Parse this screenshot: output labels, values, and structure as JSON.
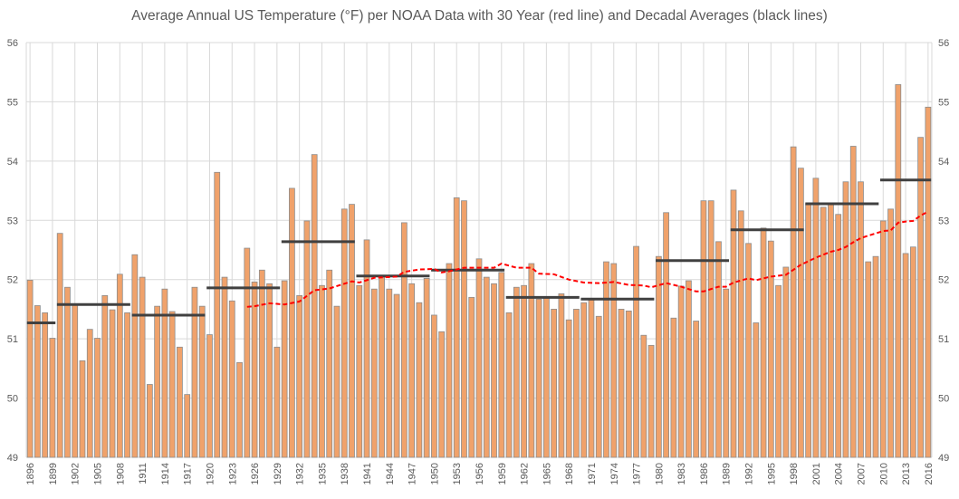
{
  "chart_data": {
    "type": "bar",
    "title": "Average Annual US Temperature (°F) per NOAA Data with 30 Year (red line) and Decadal Averages (black lines)",
    "xlabel": "",
    "ylabel": "",
    "ylim": [
      49,
      56
    ],
    "yticks": [
      49,
      50,
      51,
      52,
      53,
      54,
      55,
      56
    ],
    "secondary_y_axis": true,
    "grid": true,
    "x_tick_step": 3,
    "colors": {
      "bar_fill": "#F0A26B",
      "bar_stroke": "#8C8C8C",
      "rolling_avg": "#FF0000",
      "decadal": "#404040",
      "grid": "#D9D9D9"
    },
    "categories": [
      1896,
      1897,
      1898,
      1899,
      1900,
      1901,
      1902,
      1903,
      1904,
      1905,
      1906,
      1907,
      1908,
      1909,
      1910,
      1911,
      1912,
      1913,
      1914,
      1915,
      1916,
      1917,
      1918,
      1919,
      1920,
      1921,
      1922,
      1923,
      1924,
      1925,
      1926,
      1927,
      1928,
      1929,
      1930,
      1931,
      1932,
      1933,
      1934,
      1935,
      1936,
      1937,
      1938,
      1939,
      1940,
      1941,
      1942,
      1943,
      1944,
      1945,
      1946,
      1947,
      1948,
      1949,
      1950,
      1951,
      1952,
      1953,
      1954,
      1955,
      1956,
      1957,
      1958,
      1959,
      1960,
      1961,
      1962,
      1963,
      1964,
      1965,
      1966,
      1967,
      1968,
      1969,
      1970,
      1971,
      1972,
      1973,
      1974,
      1975,
      1976,
      1977,
      1978,
      1979,
      1980,
      1981,
      1982,
      1983,
      1984,
      1985,
      1986,
      1987,
      1988,
      1989,
      1990,
      1991,
      1992,
      1993,
      1994,
      1995,
      1996,
      1997,
      1998,
      1999,
      2000,
      2001,
      2002,
      2003,
      2004,
      2005,
      2006,
      2007,
      2008,
      2009,
      2010,
      2011,
      2012,
      2013,
      2014,
      2015,
      2016
    ],
    "values": [
      51.99,
      51.56,
      51.44,
      51.01,
      52.78,
      51.87,
      51.57,
      50.63,
      51.16,
      51.01,
      51.73,
      51.49,
      52.09,
      51.44,
      52.42,
      52.04,
      50.23,
      51.55,
      51.84,
      51.46,
      50.86,
      50.06,
      51.87,
      51.55,
      51.07,
      53.81,
      52.04,
      51.64,
      50.6,
      52.53,
      51.96,
      52.16,
      51.93,
      50.86,
      51.98,
      53.54,
      51.73,
      52.99,
      54.11,
      51.9,
      52.16,
      51.55,
      53.19,
      53.27,
      51.9,
      52.67,
      51.84,
      52.04,
      51.84,
      51.75,
      52.96,
      51.93,
      51.61,
      52.02,
      51.4,
      51.12,
      52.27,
      53.38,
      53.33,
      51.7,
      52.35,
      52.04,
      51.93,
      52.12,
      51.44,
      51.87,
      51.9,
      52.27,
      51.67,
      51.69,
      51.5,
      51.76,
      51.32,
      51.5,
      51.61,
      51.66,
      51.38,
      52.3,
      52.27,
      51.5,
      51.47,
      52.56,
      51.06,
      50.89,
      52.39,
      53.13,
      51.35,
      51.89,
      51.98,
      51.3,
      53.33,
      53.33,
      52.64,
      51.84,
      53.51,
      53.16,
      52.61,
      51.27,
      52.87,
      52.65,
      51.9,
      52.21,
      54.24,
      53.88,
      53.28,
      53.71,
      53.22,
      53.27,
      53.1,
      53.65,
      54.25,
      53.65,
      52.3,
      52.39,
      52.99,
      53.19,
      55.29,
      52.44,
      52.55,
      54.4,
      54.91
    ],
    "rolling_30yr": {
      "x": [
        1925,
        1926,
        1928,
        1930,
        1932,
        1934,
        1936,
        1938,
        1939,
        1940,
        1942,
        1945,
        1946,
        1948,
        1950,
        1951,
        1952,
        1954,
        1956,
        1958,
        1959,
        1961,
        1963,
        1964,
        1966,
        1968,
        1970,
        1972,
        1974,
        1976,
        1978,
        1979,
        1981,
        1983,
        1985,
        1986,
        1988,
        1989,
        1990,
        1992,
        1993,
        1995,
        1997,
        1999,
        2001,
        2003,
        2004,
        2005,
        2006,
        2007,
        2009,
        2010,
        2011,
        2012,
        2013,
        2014,
        2015,
        2016
      ],
      "y": [
        51.54,
        51.55,
        51.6,
        51.58,
        51.63,
        51.82,
        51.85,
        51.93,
        51.97,
        51.95,
        52.03,
        52.05,
        52.13,
        52.17,
        52.18,
        52.12,
        52.14,
        52.2,
        52.2,
        52.2,
        52.27,
        52.2,
        52.2,
        52.1,
        52.09,
        52.0,
        51.95,
        51.94,
        51.96,
        51.91,
        51.9,
        51.87,
        51.94,
        51.88,
        51.8,
        51.8,
        51.88,
        51.88,
        51.95,
        52.02,
        51.99,
        52.05,
        52.08,
        52.25,
        52.37,
        52.47,
        52.5,
        52.55,
        52.63,
        52.7,
        52.78,
        52.82,
        52.83,
        52.96,
        52.98,
        52.99,
        53.08,
        53.15
      ]
    },
    "decadal_averages": [
      {
        "start": 1896,
        "end": 1899,
        "value": 51.27
      },
      {
        "start": 1900,
        "end": 1909,
        "value": 51.58
      },
      {
        "start": 1910,
        "end": 1919,
        "value": 51.4
      },
      {
        "start": 1920,
        "end": 1929,
        "value": 51.86
      },
      {
        "start": 1930,
        "end": 1939,
        "value": 52.64
      },
      {
        "start": 1940,
        "end": 1949,
        "value": 52.06
      },
      {
        "start": 1950,
        "end": 1959,
        "value": 52.16
      },
      {
        "start": 1960,
        "end": 1969,
        "value": 51.7
      },
      {
        "start": 1970,
        "end": 1979,
        "value": 51.67
      },
      {
        "start": 1980,
        "end": 1989,
        "value": 52.32
      },
      {
        "start": 1990,
        "end": 1999,
        "value": 52.84
      },
      {
        "start": 2000,
        "end": 2009,
        "value": 53.28
      },
      {
        "start": 2010,
        "end": 2016,
        "value": 53.68
      }
    ]
  }
}
